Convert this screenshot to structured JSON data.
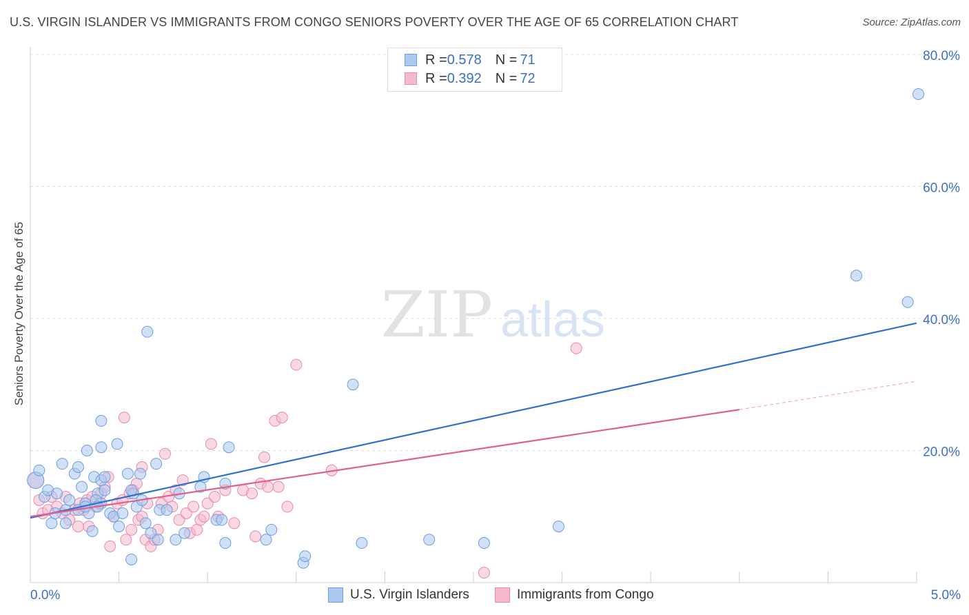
{
  "header": {
    "title": "U.S. VIRGIN ISLANDER VS IMMIGRANTS FROM CONGO SENIORS POVERTY OVER THE AGE OF 65 CORRELATION CHART",
    "source": "Source: ZipAtlas.com"
  },
  "watermark": {
    "zip": "ZIP",
    "atlas": "atlas"
  },
  "legend": {
    "series1": {
      "r_label": "R = ",
      "r_value": "0.578",
      "n_label": "N = ",
      "n_value": "71"
    },
    "series2": {
      "r_label": "R = ",
      "r_value": "0.392",
      "n_label": "N = ",
      "n_value": "72"
    }
  },
  "colors": {
    "blue_fill": "#aac8f0",
    "blue_stroke": "#6b9fdd",
    "blue_line": "#2f6fcf",
    "pink_fill": "#f5b8cc",
    "pink_stroke": "#e88aa8",
    "pink_line": "#e0608a",
    "tick_text": "#3a6fc4",
    "grid": "#dddddd"
  },
  "chart_data": {
    "type": "scatter",
    "title": "U.S. VIRGIN ISLANDER VS IMMIGRANTS FROM CONGO SENIORS POVERTY OVER THE AGE OF 65 CORRELATION CHART",
    "xlabel": "",
    "ylabel": "Seniors Poverty Over the Age of 65",
    "xlim": [
      0,
      5
    ],
    "ylim": [
      0,
      80
    ],
    "x_tick_labels": [
      "0.0%",
      "5.0%"
    ],
    "y_ticks": [
      20,
      40,
      60,
      80
    ],
    "y_tick_labels": [
      "20.0%",
      "40.0%",
      "60.0%",
      "80.0%"
    ],
    "grid": true,
    "series": [
      {
        "name": "U.S. Virgin Islanders",
        "color": "#6b9fdd",
        "trendline": {
          "x": [
            0,
            5
          ],
          "y": [
            9.8,
            39.3
          ]
        },
        "points": [
          [
            0.03,
            15.5
          ],
          [
            0.05,
            17.0
          ],
          [
            0.08,
            13.0
          ],
          [
            0.1,
            14.0
          ],
          [
            0.12,
            9.0
          ],
          [
            0.15,
            13.5
          ],
          [
            0.14,
            10.5
          ],
          [
            0.18,
            18.0
          ],
          [
            0.2,
            11.0
          ],
          [
            0.22,
            12.5
          ],
          [
            0.25,
            16.5
          ],
          [
            0.27,
            17.5
          ],
          [
            0.29,
            14.5
          ],
          [
            0.31,
            12.0
          ],
          [
            0.33,
            10.5
          ],
          [
            0.27,
            11.0
          ],
          [
            0.36,
            16.0
          ],
          [
            0.38,
            13.5
          ],
          [
            0.4,
            12.0
          ],
          [
            0.31,
            11.5
          ],
          [
            0.32,
            20.0
          ],
          [
            0.35,
            7.8
          ],
          [
            0.37,
            12.5
          ],
          [
            0.4,
            15.5
          ],
          [
            0.42,
            14.0
          ],
          [
            0.38,
            11.5
          ],
          [
            0.4,
            20.5
          ],
          [
            0.42,
            16.0
          ],
          [
            0.4,
            24.5
          ],
          [
            0.45,
            10.5
          ],
          [
            0.47,
            10.0
          ],
          [
            0.5,
            8.5
          ],
          [
            0.52,
            10.5
          ],
          [
            0.55,
            16.5
          ],
          [
            0.49,
            21.0
          ],
          [
            0.58,
            13.5
          ],
          [
            0.6,
            11.5
          ],
          [
            0.62,
            16.5
          ],
          [
            0.65,
            9.0
          ],
          [
            0.63,
            12.5
          ],
          [
            0.57,
            14.0
          ],
          [
            0.66,
            38.0
          ],
          [
            0.71,
            18.0
          ],
          [
            0.68,
            7.5
          ],
          [
            0.72,
            6.5
          ],
          [
            0.73,
            11.0
          ],
          [
            0.77,
            11.0
          ],
          [
            0.84,
            13.5
          ],
          [
            0.82,
            6.5
          ],
          [
            0.87,
            7.5
          ],
          [
            0.96,
            14.5
          ],
          [
            0.98,
            16.0
          ],
          [
            1.05,
            9.5
          ],
          [
            1.08,
            9.5
          ],
          [
            1.1,
            6.0
          ],
          [
            1.12,
            20.5
          ],
          [
            1.1,
            15.0
          ],
          [
            1.33,
            6.5
          ],
          [
            1.36,
            8.0
          ],
          [
            1.54,
            3.0
          ],
          [
            1.55,
            4.0
          ],
          [
            1.82,
            30.0
          ],
          [
            1.87,
            6.0
          ],
          [
            2.25,
            6.5
          ],
          [
            2.56,
            6.0
          ],
          [
            2.98,
            8.5
          ],
          [
            0.57,
            3.5
          ],
          [
            0.2,
            9.0
          ],
          [
            4.66,
            46.5
          ],
          [
            4.95,
            42.5
          ],
          [
            5.01,
            74.0
          ]
        ]
      },
      {
        "name": "Immigrants from Congo",
        "color": "#e88aa8",
        "trendline": {
          "x": [
            0,
            4
          ],
          "y": [
            10.0,
            26.2
          ],
          "dashed_extension": {
            "x": [
              4,
              5
            ],
            "y": [
              26.2,
              30.5
            ]
          }
        },
        "points": [
          [
            0.03,
            15.5
          ],
          [
            0.05,
            12.5
          ],
          [
            0.07,
            10.5
          ],
          [
            0.1,
            11.0
          ],
          [
            0.12,
            13.0
          ],
          [
            0.15,
            11.5
          ],
          [
            0.18,
            10.5
          ],
          [
            0.2,
            13.0
          ],
          [
            0.22,
            9.5
          ],
          [
            0.25,
            11.0
          ],
          [
            0.27,
            8.5
          ],
          [
            0.28,
            12.0
          ],
          [
            0.3,
            11.0
          ],
          [
            0.32,
            12.5
          ],
          [
            0.33,
            8.5
          ],
          [
            0.35,
            13.0
          ],
          [
            0.37,
            11.5
          ],
          [
            0.39,
            12.0
          ],
          [
            0.4,
            13.5
          ],
          [
            0.42,
            14.5
          ],
          [
            0.44,
            16.0
          ],
          [
            0.45,
            5.5
          ],
          [
            0.47,
            10.0
          ],
          [
            0.49,
            12.0
          ],
          [
            0.52,
            12.5
          ],
          [
            0.53,
            25.0
          ],
          [
            0.54,
            6.5
          ],
          [
            0.56,
            13.5
          ],
          [
            0.57,
            8.0
          ],
          [
            0.58,
            14.0
          ],
          [
            0.6,
            15.0
          ],
          [
            0.61,
            9.5
          ],
          [
            0.63,
            10.0
          ],
          [
            0.65,
            6.5
          ],
          [
            0.66,
            12.0
          ],
          [
            0.68,
            5.5
          ],
          [
            0.7,
            6.5
          ],
          [
            0.72,
            8.0
          ],
          [
            0.74,
            12.0
          ],
          [
            0.76,
            19.5
          ],
          [
            0.78,
            13.0
          ],
          [
            0.8,
            11.5
          ],
          [
            0.82,
            14.0
          ],
          [
            0.84,
            9.5
          ],
          [
            0.86,
            15.5
          ],
          [
            0.88,
            10.5
          ],
          [
            0.9,
            7.5
          ],
          [
            0.92,
            11.5
          ],
          [
            0.94,
            8.0
          ],
          [
            0.96,
            9.5
          ],
          [
            0.98,
            10.0
          ],
          [
            1.0,
            12.0
          ],
          [
            1.02,
            21.0
          ],
          [
            1.04,
            13.0
          ],
          [
            1.06,
            10.0
          ],
          [
            1.1,
            14.0
          ],
          [
            1.15,
            9.0
          ],
          [
            1.2,
            14.0
          ],
          [
            1.25,
            13.5
          ],
          [
            1.27,
            7.0
          ],
          [
            1.3,
            15.0
          ],
          [
            1.32,
            19.0
          ],
          [
            1.34,
            14.5
          ],
          [
            1.38,
            24.5
          ],
          [
            1.4,
            14.5
          ],
          [
            1.42,
            25.0
          ],
          [
            1.45,
            11.5
          ],
          [
            1.5,
            33.0
          ],
          [
            1.7,
            17.0
          ],
          [
            2.56,
            1.5
          ],
          [
            3.08,
            35.5
          ],
          [
            0.63,
            17.5
          ]
        ]
      }
    ]
  }
}
